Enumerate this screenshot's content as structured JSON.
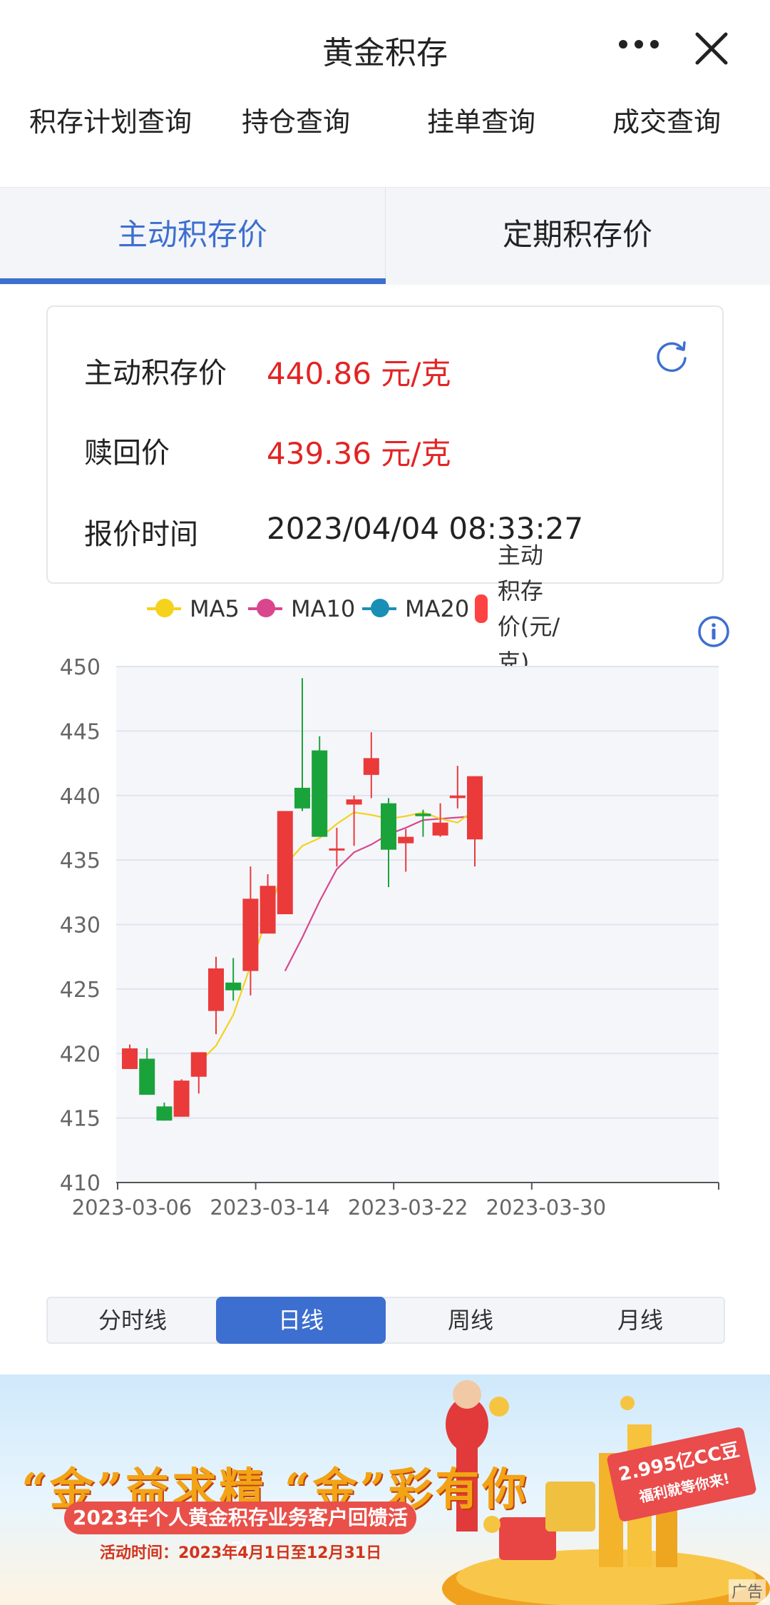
{
  "header": {
    "title": "黄金积存",
    "more_icon": "more-dots-icon",
    "close_icon": "close-icon"
  },
  "top_nav": [
    "积存计划查询",
    "持仓查询",
    "挂单查询",
    "成交查询"
  ],
  "tabs": [
    {
      "label": "主动积存价",
      "active": true
    },
    {
      "label": "定期积存价",
      "active": false
    }
  ],
  "price_card": {
    "rows": [
      {
        "label": "主动积存价",
        "value": "440.86 元/克",
        "color": "#e32424"
      },
      {
        "label": "赎回价",
        "value": "439.36 元/克",
        "color": "#e32424"
      },
      {
        "label": "报价时间",
        "value": "2023/04/04 08:33:27",
        "color": "#222222"
      }
    ],
    "refresh_icon": "refresh-icon"
  },
  "legend": [
    {
      "label": "MA5",
      "color": "#f5d21c"
    },
    {
      "label": "MA10",
      "color": "#d9468e"
    },
    {
      "label": "MA20",
      "color": "#1a8fb5"
    },
    {
      "label": "主动积存价(元/克)",
      "color": "#ff4242"
    }
  ],
  "info_icon": "info-icon",
  "chart_data": {
    "type": "candlestick",
    "ylim": [
      410,
      450
    ],
    "yticks": [
      410,
      415,
      420,
      425,
      430,
      435,
      440,
      445,
      450
    ],
    "xtick_labels": [
      "2023-03-06",
      "2023-03-14",
      "2023-03-22",
      "2023-03-30"
    ],
    "xtick_index": [
      0,
      8,
      16,
      24
    ],
    "up_color": "#ea3a3a",
    "down_color": "#1aa33a",
    "candles": [
      {
        "o": 418.8,
        "c": 420.4,
        "h": 420.7,
        "l": 418.8
      },
      {
        "o": 419.6,
        "c": 416.8,
        "h": 420.4,
        "l": 416.8
      },
      {
        "o": 415.9,
        "c": 414.8,
        "h": 416.2,
        "l": 414.8
      },
      {
        "o": 415.1,
        "c": 417.9,
        "h": 418.0,
        "l": 415.1
      },
      {
        "o": 418.2,
        "c": 420.1,
        "h": 420.1,
        "l": 416.9
      },
      {
        "o": 423.3,
        "c": 426.6,
        "h": 427.5,
        "l": 421.5
      },
      {
        "o": 425.5,
        "c": 424.9,
        "h": 427.4,
        "l": 424.1
      },
      {
        "o": 426.4,
        "c": 432.0,
        "h": 434.5,
        "l": 424.5
      },
      {
        "o": 429.3,
        "c": 433.0,
        "h": 433.9,
        "l": 429.3
      },
      {
        "o": 430.8,
        "c": 438.8,
        "h": 438.8,
        "l": 430.8
      },
      {
        "o": 440.6,
        "c": 439.0,
        "h": 449.1,
        "l": 438.8
      },
      {
        "o": 443.5,
        "c": 436.8,
        "h": 444.6,
        "l": 436.8
      },
      {
        "o": 435.9,
        "c": 435.9,
        "h": 437.5,
        "l": 434.5
      },
      {
        "o": 439.3,
        "c": 439.7,
        "h": 440.0,
        "l": 436.1
      },
      {
        "o": 441.6,
        "c": 442.9,
        "h": 444.9,
        "l": 439.8
      },
      {
        "o": 439.4,
        "c": 435.8,
        "h": 439.8,
        "l": 432.9
      },
      {
        "o": 436.3,
        "c": 436.8,
        "h": 437.4,
        "l": 434.1
      },
      {
        "o": 438.6,
        "c": 438.4,
        "h": 438.9,
        "l": 436.8
      },
      {
        "o": 436.9,
        "c": 437.9,
        "h": 439.4,
        "l": 436.8
      },
      {
        "o": 439.8,
        "c": 440.0,
        "h": 442.3,
        "l": 439.0
      },
      {
        "o": 436.6,
        "c": 441.5,
        "h": 441.5,
        "l": 434.5
      }
    ],
    "ma5": [
      null,
      null,
      null,
      null,
      419.3,
      420.6,
      423.0,
      426.8,
      430.7,
      434.6,
      436.1,
      436.7,
      437.8,
      438.7,
      438.5,
      438.2,
      438.4,
      438.7,
      438.2,
      437.9,
      438.9
    ],
    "ma10": [
      null,
      null,
      null,
      null,
      null,
      null,
      null,
      null,
      null,
      426.4,
      429.0,
      431.8,
      434.3,
      435.6,
      436.2,
      437.0,
      437.5,
      438.1,
      438.2,
      438.3,
      438.4
    ]
  },
  "period_selector": {
    "options": [
      "分时线",
      "日线",
      "周线",
      "月线"
    ],
    "active_index": 1
  },
  "banner": {
    "headline": "“金”益求精 “金”彩有你",
    "subtitle": "2023年个人黄金积存业务客户回馈活动",
    "time": "活动时间：2023年4月1日至12月31日",
    "tag_line1": "2.995亿CC豆",
    "tag_line2": "福利就等你来!",
    "ad_label": "广告"
  }
}
